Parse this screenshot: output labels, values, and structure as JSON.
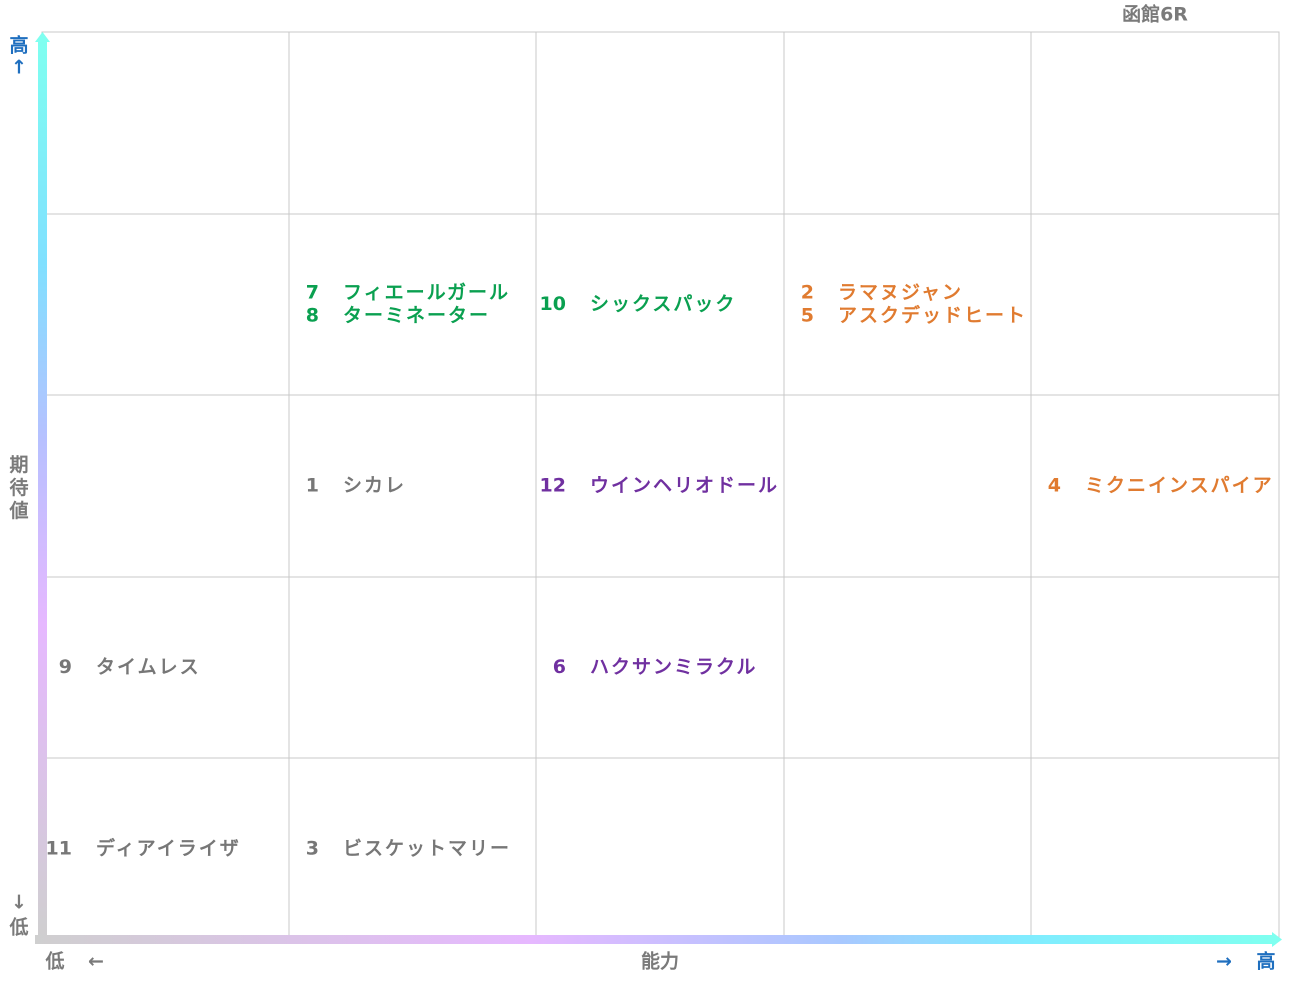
{
  "title": "函館6R",
  "y_axis": {
    "label": "期待値",
    "high": "高",
    "high_arrow": "↑",
    "low_arrow": "↓",
    "low": "低"
  },
  "x_axis": {
    "label": "能力",
    "low": "低",
    "low_arrow": "←",
    "high_arrow": "→",
    "high": "高"
  },
  "grid": {
    "rows": [
      [
        [],
        [],
        [],
        [],
        []
      ],
      [
        [],
        [
          {
            "number": "7",
            "name": "フィエールガール",
            "color": "#0aa050"
          },
          {
            "number": "8",
            "name": "ターミネーター",
            "color": "#0aa050"
          }
        ],
        [
          {
            "number": "10",
            "name": "シックスパック",
            "color": "#0aa050"
          }
        ],
        [
          {
            "number": "2",
            "name": "ラマヌジャン",
            "color": "#e07b30"
          },
          {
            "number": "5",
            "name": "アスクデッドヒート",
            "color": "#e07b30"
          }
        ],
        []
      ],
      [
        [],
        [
          {
            "number": "1",
            "name": "シカレ",
            "color": "#777777"
          }
        ],
        [
          {
            "number": "12",
            "name": "ウインヘリオドール",
            "color": "#7030a0"
          }
        ],
        [],
        [
          {
            "number": "4",
            "name": "ミクニインスパイア",
            "color": "#e07b30"
          }
        ]
      ],
      [
        [
          {
            "number": "9",
            "name": "タイムレス",
            "color": "#777777"
          }
        ],
        [],
        [
          {
            "number": "6",
            "name": "ハクサンミラクル",
            "color": "#7030a0"
          }
        ],
        [],
        []
      ],
      [
        [
          {
            "number": "11",
            "name": "ディアイライザ",
            "color": "#777777"
          }
        ],
        [
          {
            "number": "3",
            "name": "ビスケットマリー",
            "color": "#777777"
          }
        ],
        [],
        [],
        []
      ]
    ]
  }
}
